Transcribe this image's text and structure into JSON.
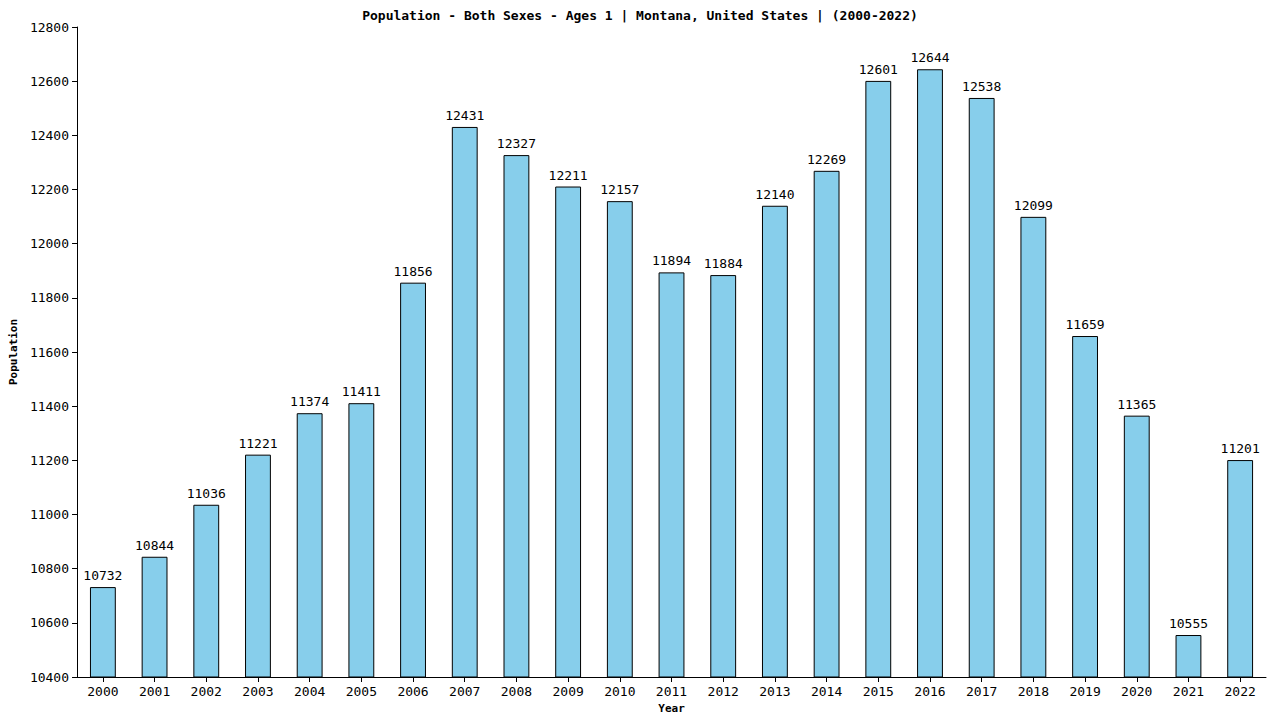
{
  "chart_data": {
    "type": "bar",
    "title": "Population - Both Sexes - Ages 1 | Montana, United States | (2000-2022)",
    "x_label": "Year",
    "y_label": "Population",
    "categories": [
      "2000",
      "2001",
      "2002",
      "2003",
      "2004",
      "2005",
      "2006",
      "2007",
      "2008",
      "2009",
      "2010",
      "2011",
      "2012",
      "2013",
      "2014",
      "2015",
      "2016",
      "2017",
      "2018",
      "2019",
      "2020",
      "2021",
      "2022"
    ],
    "values": [
      10732,
      10844,
      11036,
      11221,
      11374,
      11411,
      11856,
      12431,
      12327,
      12211,
      12157,
      11894,
      11884,
      12140,
      12269,
      12601,
      12644,
      12538,
      12099,
      11659,
      11365,
      10555,
      11201
    ],
    "color": "#87ceeb",
    "ylim": [
      10400,
      12800
    ],
    "yticks": [
      10400,
      10600,
      10800,
      11000,
      11200,
      11400,
      11600,
      11800,
      12000,
      12200,
      12400,
      12600,
      12800
    ],
    "grid": false,
    "data_labels": true
  }
}
